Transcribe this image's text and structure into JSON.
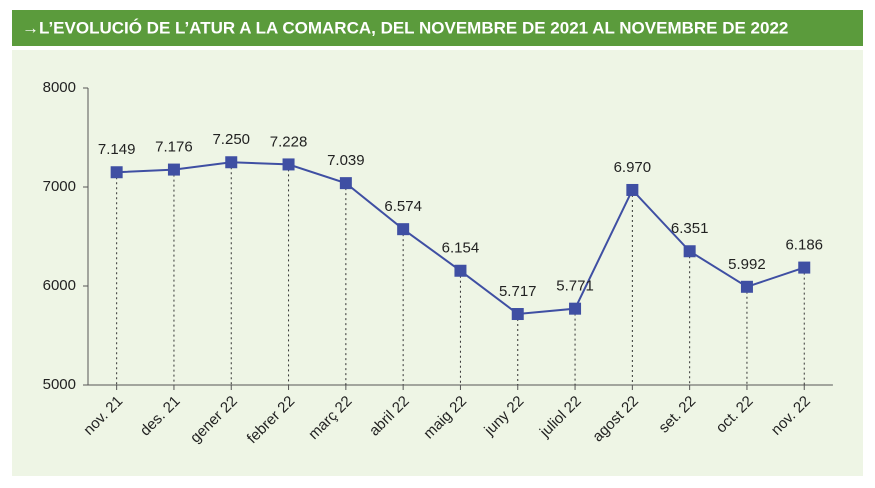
{
  "chart_data": {
    "type": "line",
    "title": "→L’EVOLUCIÓ DE L’ATUR A LA COMARCA, DEL NOVEMBRE DE 2021 AL NOVEMBRE DE 2022",
    "categories": [
      "nov. 21",
      "des. 21",
      "gener 22",
      "febrer 22",
      "març 22",
      "abril 22",
      "maig 22",
      "juny 22",
      "juliol 22",
      "agost 22",
      "set. 22",
      "oct. 22",
      "nov. 22"
    ],
    "values": [
      7149,
      7176,
      7250,
      7228,
      7039,
      6574,
      6154,
      5717,
      5771,
      6970,
      6351,
      5992,
      6186
    ],
    "value_labels": [
      "7.149",
      "7.176",
      "7.250",
      "7.228",
      "7.039",
      "6.574",
      "6.154",
      "5.717",
      "5.771",
      "6.970",
      "6.351",
      "5.992",
      "6.186"
    ],
    "color": "#3f4fa3",
    "ylim": [
      5000,
      8000
    ],
    "yticks": [
      5000,
      6000,
      7000,
      8000
    ]
  }
}
